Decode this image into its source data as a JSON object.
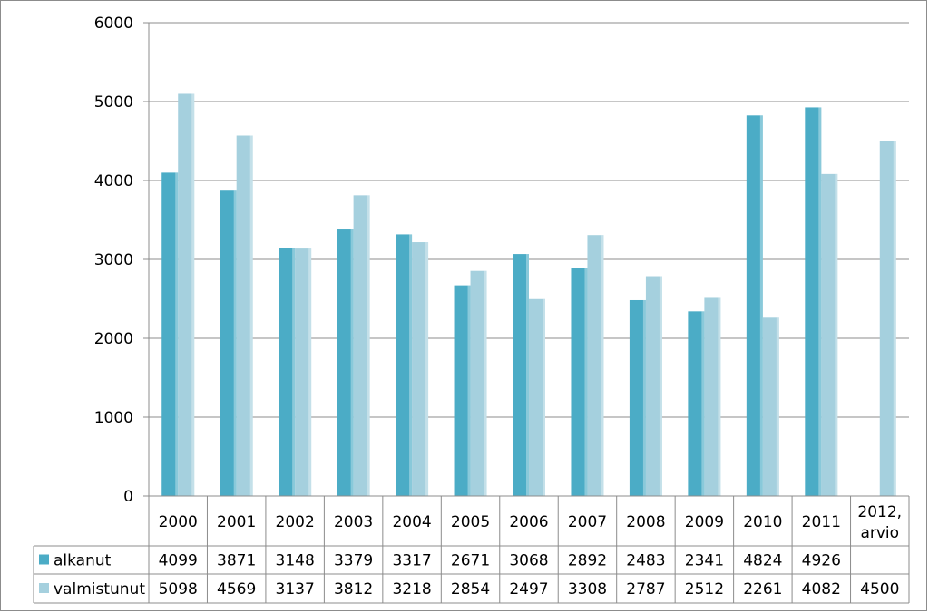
{
  "chart_data": {
    "type": "bar",
    "title": "",
    "xlabel": "",
    "ylabel": "",
    "ylim": [
      0,
      6000
    ],
    "yticks": [
      0,
      1000,
      2000,
      3000,
      4000,
      5000,
      6000
    ],
    "grid": true,
    "legend": "data-table",
    "categories": [
      "2000",
      "2001",
      "2002",
      "2003",
      "2004",
      "2005",
      "2006",
      "2007",
      "2008",
      "2009",
      "2010",
      "2011",
      "2012, arvio"
    ],
    "series": [
      {
        "name": "alkanut",
        "color": "#4bacc6",
        "values": [
          4099,
          3871,
          3148,
          3379,
          3317,
          2671,
          3068,
          2892,
          2483,
          2341,
          4824,
          4926,
          null
        ]
      },
      {
        "name": "valmistunut",
        "color": "#a5d0de",
        "values": [
          5098,
          4569,
          3137,
          3812,
          3218,
          2854,
          2497,
          3308,
          2787,
          2512,
          2261,
          4082,
          4500
        ]
      }
    ]
  }
}
